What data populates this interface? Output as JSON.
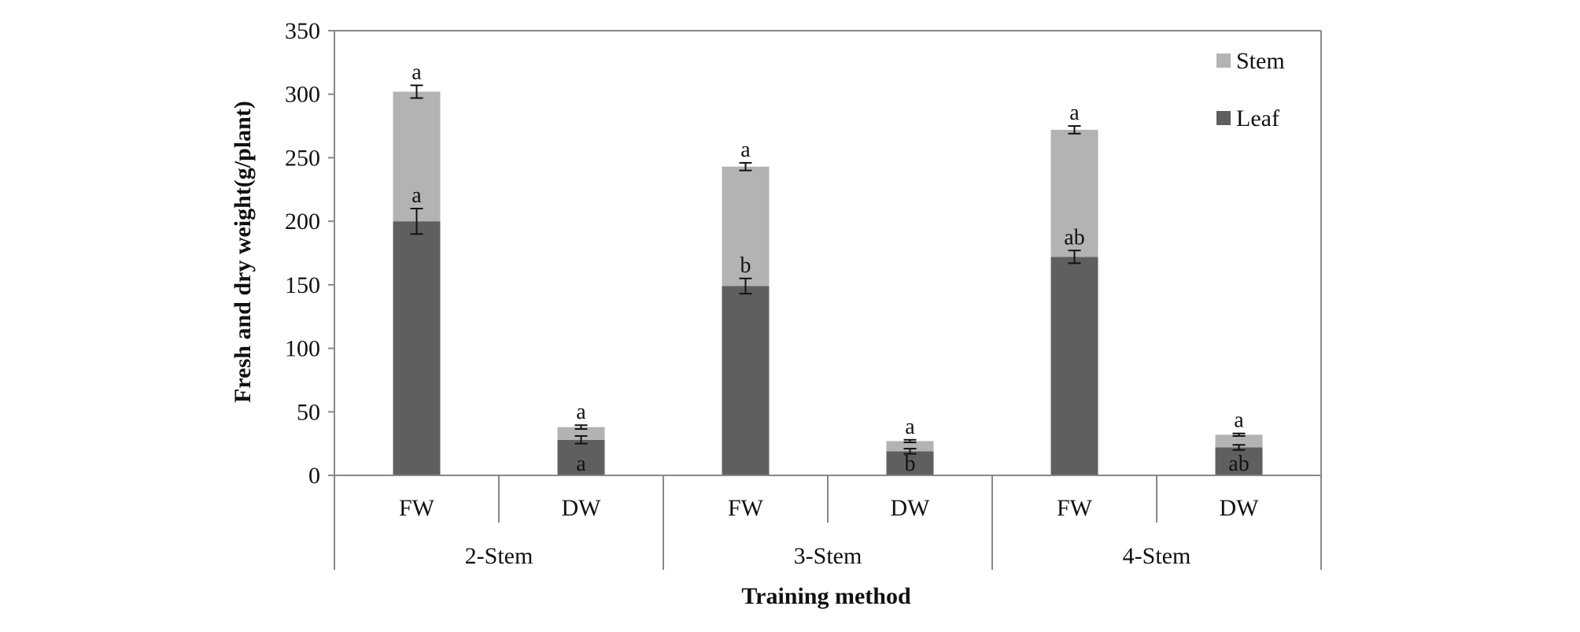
{
  "chart_data": {
    "type": "bar",
    "stacked": true,
    "title": "",
    "xlabel": "Training method",
    "ylabel": "Fresh and dry weight(g/plant)",
    "ylim": [
      0,
      350
    ],
    "yticks": [
      0,
      50,
      100,
      150,
      200,
      250,
      300,
      350
    ],
    "groups": [
      "2-Stem",
      "3-Stem",
      "4-Stem"
    ],
    "subcategories": [
      "FW",
      "DW"
    ],
    "categories": [
      "FW",
      "DW",
      "FW",
      "DW",
      "FW",
      "DW"
    ],
    "colors": {
      "Stem": "#b3b3b3",
      "Leaf": "#5f5f5f",
      "axis": "#888888"
    },
    "legend": {
      "position": "top-right",
      "entries": [
        "Stem",
        "Leaf"
      ]
    },
    "series": [
      {
        "name": "Leaf",
        "values": [
          200,
          28,
          149,
          19,
          172,
          22
        ],
        "errors": [
          10,
          3,
          6,
          2,
          5,
          2
        ],
        "labels": [
          "a",
          "a",
          "b",
          "b",
          "ab",
          "ab"
        ]
      },
      {
        "name": "Stem",
        "values": [
          102,
          10,
          94,
          8,
          100,
          10
        ],
        "errors": [
          5,
          1.5,
          3,
          1,
          3,
          1
        ],
        "labels": [
          "a",
          "a",
          "a",
          "a",
          "a",
          "a"
        ]
      }
    ]
  }
}
